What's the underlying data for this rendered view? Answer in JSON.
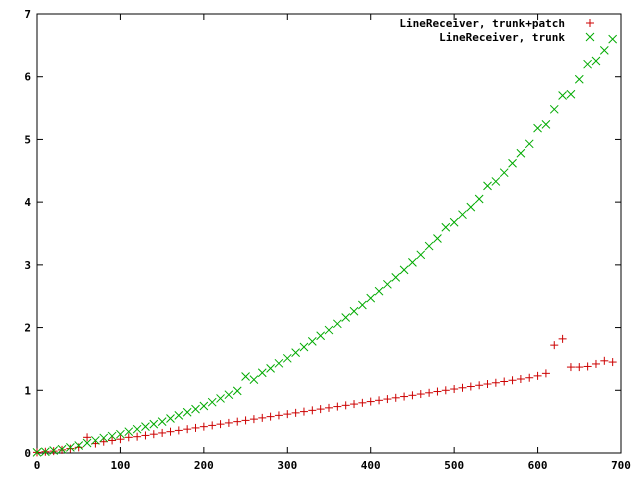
{
  "chart_data": {
    "type": "scatter",
    "title": "",
    "xlabel": "",
    "ylabel": "",
    "xlim": [
      0,
      700
    ],
    "ylim": [
      0,
      7
    ],
    "xticks": [
      "0",
      "100",
      "200",
      "300",
      "400",
      "500",
      "600",
      "700"
    ],
    "yticks": [
      "0",
      "1",
      "2",
      "3",
      "4",
      "5",
      "6",
      "7"
    ],
    "grid": false,
    "legend_position": "top-right",
    "series": [
      {
        "name": "LineReceiver, trunk+patch",
        "marker": "plus",
        "color": "#cc0000",
        "x": [
          0,
          10,
          20,
          30,
          40,
          50,
          60,
          70,
          80,
          90,
          100,
          110,
          120,
          130,
          140,
          150,
          160,
          170,
          180,
          190,
          200,
          210,
          220,
          230,
          240,
          250,
          260,
          270,
          280,
          290,
          300,
          310,
          320,
          330,
          340,
          350,
          360,
          370,
          380,
          390,
          400,
          410,
          420,
          430,
          440,
          450,
          460,
          470,
          480,
          490,
          500,
          510,
          520,
          530,
          540,
          550,
          560,
          570,
          580,
          590,
          600,
          610,
          620,
          630,
          640,
          650,
          660,
          670,
          680,
          690
        ],
        "y": [
          0.01,
          0.02,
          0.03,
          0.05,
          0.07,
          0.09,
          0.25,
          0.15,
          0.18,
          0.2,
          0.22,
          0.25,
          0.26,
          0.28,
          0.3,
          0.32,
          0.34,
          0.36,
          0.38,
          0.4,
          0.42,
          0.44,
          0.46,
          0.48,
          0.5,
          0.52,
          0.54,
          0.56,
          0.58,
          0.6,
          0.62,
          0.64,
          0.66,
          0.68,
          0.7,
          0.72,
          0.74,
          0.76,
          0.78,
          0.8,
          0.82,
          0.84,
          0.86,
          0.88,
          0.9,
          0.92,
          0.94,
          0.96,
          0.98,
          1.0,
          1.02,
          1.04,
          1.06,
          1.08,
          1.1,
          1.12,
          1.14,
          1.16,
          1.18,
          1.2,
          1.23,
          1.27,
          1.72,
          1.82,
          1.37,
          1.37,
          1.38,
          1.42,
          1.47,
          1.45
        ]
      },
      {
        "name": "LineReceiver, trunk",
        "marker": "cross",
        "color": "#00aa00",
        "x": [
          0,
          10,
          20,
          30,
          40,
          50,
          60,
          70,
          80,
          90,
          100,
          110,
          120,
          130,
          140,
          150,
          160,
          170,
          180,
          190,
          200,
          210,
          220,
          230,
          240,
          250,
          260,
          270,
          280,
          290,
          300,
          310,
          320,
          330,
          340,
          350,
          360,
          370,
          380,
          390,
          400,
          410,
          420,
          430,
          440,
          450,
          460,
          470,
          480,
          490,
          500,
          510,
          520,
          530,
          540,
          550,
          560,
          570,
          580,
          590,
          600,
          610,
          620,
          630,
          640,
          650,
          660,
          670,
          680,
          690
        ],
        "y": [
          0.01,
          0.02,
          0.04,
          0.06,
          0.09,
          0.12,
          0.16,
          0.2,
          0.24,
          0.27,
          0.3,
          0.34,
          0.38,
          0.42,
          0.46,
          0.5,
          0.55,
          0.6,
          0.65,
          0.7,
          0.75,
          0.81,
          0.87,
          0.93,
          0.99,
          1.22,
          1.17,
          1.28,
          1.35,
          1.43,
          1.51,
          1.6,
          1.69,
          1.78,
          1.87,
          1.96,
          2.06,
          2.16,
          2.26,
          2.36,
          2.47,
          2.58,
          2.69,
          2.8,
          2.92,
          3.04,
          3.16,
          3.3,
          3.42,
          3.6,
          3.68,
          3.8,
          3.92,
          4.05,
          4.26,
          4.33,
          4.47,
          4.62,
          4.78,
          4.93,
          5.18,
          5.24,
          5.48,
          5.7,
          5.72,
          5.96,
          6.2,
          6.25,
          6.42,
          6.6
        ]
      }
    ]
  }
}
